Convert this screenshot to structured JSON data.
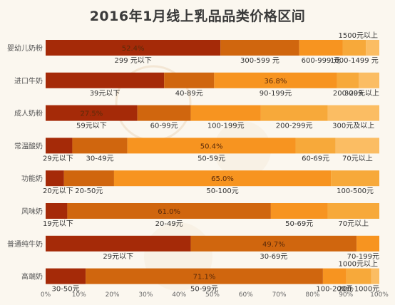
{
  "chart_data": {
    "type": "bar",
    "stacked": true,
    "orientation": "horizontal",
    "title": "2016年1月线上乳品品类价格区间",
    "xlim": [
      0,
      100
    ],
    "x_ticks": [
      "0%",
      "10%",
      "20%",
      "30%",
      "40%",
      "50%",
      "60%",
      "70%",
      "80%",
      "90%",
      "100%"
    ],
    "grid": false,
    "colors": [
      "#a52a08",
      "#d0660e",
      "#f79420",
      "#f7a93a",
      "#fbbd63"
    ],
    "rows": [
      {
        "category": "婴幼儿奶粉",
        "values": [
          52.4,
          23.6,
          13.0,
          7.0,
          4.0
        ],
        "inner_label": "52.4%",
        "segment_labels": [
          "299 元以下",
          "300-599 元",
          "600-999 元",
          "1000-1499 元",
          "1500元以上"
        ]
      },
      {
        "category": "进口牛奶",
        "values": [
          35.5,
          15.0,
          36.8,
          6.5,
          6.2
        ],
        "inner_label": "36.8%",
        "segment_labels": [
          "39元以下",
          "40-89元",
          "90-199元",
          "200-299",
          "300元以上"
        ]
      },
      {
        "category": "成人奶粉",
        "values": [
          27.5,
          16.0,
          21.0,
          20.0,
          15.5
        ],
        "inner_label": "27.5%",
        "segment_labels": [
          "59元以下",
          "60-99元",
          "100-199元",
          "200-299元",
          "300元及以上"
        ]
      },
      {
        "category": "常温酸奶",
        "values": [
          8.0,
          16.5,
          50.4,
          12.0,
          13.1
        ],
        "inner_label": "50.4%",
        "segment_labels": [
          "29元以下",
          "30-49元",
          "50-59元",
          "60-69元",
          "70元以上"
        ]
      },
      {
        "category": "功能奶",
        "values": [
          5.5,
          15.0,
          65.0,
          14.5
        ],
        "inner_label": "65.0%",
        "segment_labels": [
          "20元以下",
          "20-50元",
          "50-100元",
          "100-500元"
        ]
      },
      {
        "category": "风味奶",
        "values": [
          6.5,
          61.0,
          17.0,
          15.5
        ],
        "inner_label": "61.0%",
        "segment_labels": [
          "19元以下",
          "20-49元",
          "50-69元",
          "70元以上"
        ]
      },
      {
        "category": "普通纯牛奶",
        "values": [
          43.5,
          49.7,
          6.8
        ],
        "inner_label": "49.7%",
        "segment_labels": [
          "29元以下",
          "30-69元",
          "70-199元"
        ]
      },
      {
        "category": "高端奶",
        "values": [
          12.0,
          71.1,
          7.0,
          7.5,
          2.4
        ],
        "inner_label": "71.1%",
        "segment_labels": [
          "30-50元",
          "50-99元",
          "100-200元",
          "200-1000元",
          "1000元以上"
        ]
      }
    ]
  }
}
